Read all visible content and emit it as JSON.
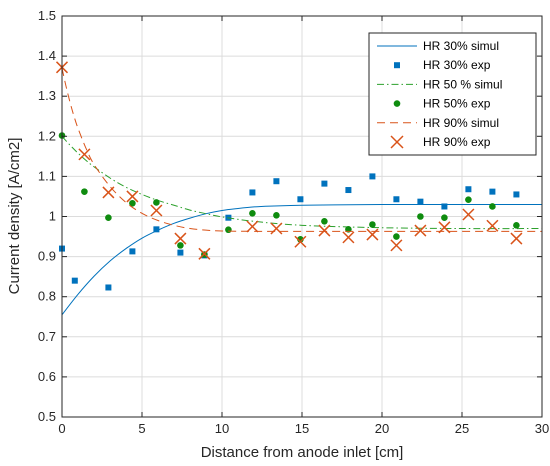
{
  "chart_data": {
    "type": "line",
    "title": "",
    "xlabel": "Distance from anode inlet [cm]",
    "ylabel": "Current density [A/cm2]",
    "xlim": [
      0,
      30
    ],
    "ylim": [
      0.5,
      1.5
    ],
    "x_ticks": [
      "0",
      "5",
      "10",
      "15",
      "20",
      "25",
      "30"
    ],
    "y_ticks": [
      "0.5",
      "0.6",
      "0.7",
      "0.8",
      "0.9",
      "1",
      "1.1",
      "1.2",
      "1.3",
      "1.4",
      "1.5"
    ],
    "grid": true,
    "legend_position": "top-right",
    "series": [
      {
        "name": "HR 30% simul",
        "kind": "line",
        "style": "solid",
        "color": "#0072BD",
        "x": [
          0,
          1,
          2,
          3,
          4,
          5,
          6,
          7,
          8,
          9,
          10,
          11,
          12,
          13,
          15,
          17,
          20,
          25,
          30
        ],
        "y": [
          0.755,
          0.806,
          0.851,
          0.889,
          0.92,
          0.946,
          0.966,
          0.983,
          0.996,
          1.007,
          1.015,
          1.02,
          1.024,
          1.026,
          1.028,
          1.029,
          1.03,
          1.03,
          1.03
        ]
      },
      {
        "name": "HR 30% exp",
        "kind": "marker",
        "marker": "square",
        "color": "#0072BD",
        "x": [
          0.0,
          0.8,
          2.9,
          4.4,
          5.9,
          7.4,
          8.9,
          10.4,
          11.9,
          13.4,
          14.9,
          16.4,
          17.9,
          19.4,
          20.9,
          22.4,
          23.9,
          25.4,
          26.9,
          28.4
        ],
        "y": [
          0.92,
          0.84,
          0.823,
          0.913,
          0.968,
          0.91,
          0.903,
          0.997,
          1.06,
          1.088,
          1.043,
          1.082,
          1.066,
          1.1,
          1.043,
          1.037,
          1.025,
          1.068,
          1.062,
          1.055
        ]
      },
      {
        "name": "HR 50 % simul",
        "kind": "line",
        "style": "dashdot",
        "color": "#2CA02C",
        "x": [
          0,
          0.5,
          1,
          1.5,
          2,
          3,
          4,
          5,
          6,
          7,
          8,
          9,
          10,
          12,
          15,
          20,
          25,
          30
        ],
        "y": [
          1.2,
          1.178,
          1.158,
          1.14,
          1.124,
          1.096,
          1.073,
          1.055,
          1.04,
          1.028,
          1.016,
          1.007,
          0.999,
          0.988,
          0.978,
          0.972,
          0.97,
          0.97
        ]
      },
      {
        "name": "HR 50% exp",
        "kind": "marker",
        "marker": "circle",
        "color": "#0F8C0F",
        "x": [
          0.0,
          1.4,
          2.9,
          4.4,
          5.9,
          7.4,
          8.9,
          10.4,
          11.9,
          13.4,
          14.9,
          16.4,
          17.9,
          19.4,
          20.9,
          22.4,
          23.9,
          25.4,
          26.9,
          28.4
        ],
        "y": [
          1.202,
          1.062,
          0.997,
          1.033,
          1.035,
          0.928,
          0.905,
          0.967,
          1.008,
          1.003,
          0.943,
          0.988,
          0.968,
          0.98,
          0.95,
          1.0,
          0.997,
          1.042,
          1.025,
          0.978
        ]
      },
      {
        "name": "HR 90% simul",
        "kind": "line",
        "style": "dashed",
        "color": "#D95319",
        "x": [
          0,
          0.25,
          0.5,
          0.75,
          1,
          1.5,
          2,
          3,
          4,
          5,
          6,
          7,
          8,
          9,
          10,
          12,
          15,
          20,
          25,
          30
        ],
        "y": [
          1.37,
          1.325,
          1.285,
          1.25,
          1.22,
          1.17,
          1.13,
          1.075,
          1.035,
          1.008,
          0.99,
          0.978,
          0.97,
          0.966,
          0.964,
          0.963,
          0.963,
          0.963,
          0.963,
          0.963
        ]
      },
      {
        "name": "HR 90% exp",
        "kind": "marker",
        "marker": "x",
        "color": "#D95319",
        "x": [
          0.0,
          1.4,
          2.9,
          4.4,
          5.9,
          7.4,
          8.9,
          10.4,
          11.9,
          13.4,
          14.9,
          16.4,
          17.9,
          19.4,
          20.9,
          22.4,
          23.9,
          25.4,
          26.9,
          28.4
        ],
        "y": [
          1.372,
          1.155,
          1.06,
          1.05,
          1.015,
          0.945,
          0.907,
          null,
          0.975,
          0.97,
          0.937,
          0.965,
          0.948,
          0.955,
          0.928,
          0.965,
          0.973,
          1.005,
          0.977,
          0.945
        ]
      }
    ]
  }
}
